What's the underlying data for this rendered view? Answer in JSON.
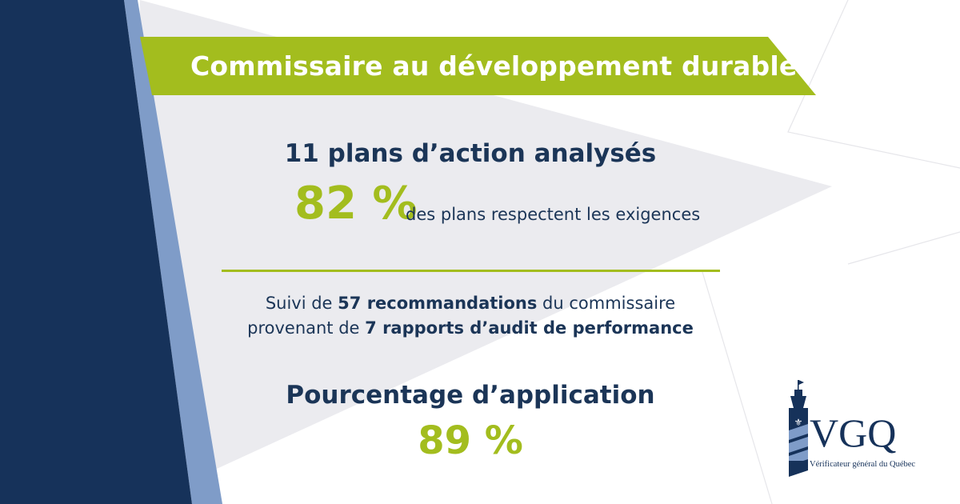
{
  "banner": {
    "title": "Commissaire au développement durable"
  },
  "plans": {
    "heading": "11 plans d’action analysés",
    "percent": "82 %",
    "caption": "des plans respectent les exigences"
  },
  "followup": {
    "line1_pre": "Suivi de ",
    "line1_bold": "57 recommandations",
    "line1_post": " du commissaire",
    "line2_pre": "provenant de ",
    "line2_bold": "7 rapports d’audit de performance"
  },
  "application": {
    "heading": "Pourcentage d’application",
    "percent": "89 %"
  },
  "logo": {
    "letters": "VGQ",
    "tagline": "Vérificateur général du Québec"
  },
  "colors": {
    "navy": "#16325a",
    "light_blue": "#7f9cc8",
    "green": "#a3bd1e",
    "light_gray": "#ebebef",
    "text_navy": "#1b3557"
  }
}
